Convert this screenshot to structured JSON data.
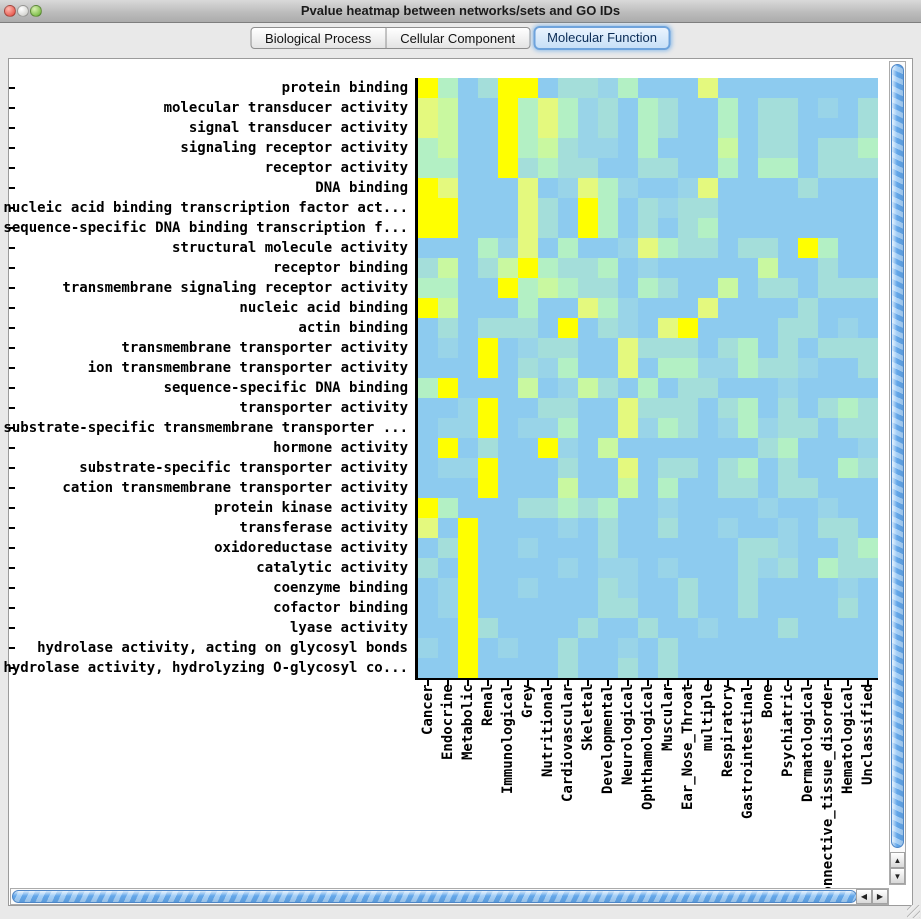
{
  "window": {
    "title": "Pvalue heatmap between networks/sets and GO IDs"
  },
  "tabs": [
    {
      "label": "Biological Process",
      "selected": false
    },
    {
      "label": "Cellular Component",
      "selected": false
    },
    {
      "label": "Molecular Function",
      "selected": true
    }
  ],
  "scrollbars": {
    "v": {
      "up_arrow": "▲",
      "down_arrow": "▼"
    },
    "h": {
      "left_arrow": "◀",
      "right_arrow": "▶"
    }
  },
  "chart_data": {
    "type": "heatmap",
    "columns": [
      "Cancer",
      "Endocrine",
      "Metabolic",
      "Renal",
      "Immunological",
      "Grey",
      "Nutritional",
      "Cardiovascular",
      "Skeletal",
      "Developmental",
      "Neurological",
      "Ophthamological",
      "Muscular",
      "Ear_Nose_Throat",
      "multiple",
      "Respiratory",
      "Gastrointestinal",
      "Bone",
      "Psychiatric",
      "Dermatological",
      "Connective_tissue_disorder",
      "Hematological",
      "Unclassified"
    ],
    "rows": [
      "protein binding",
      "molecular transducer activity",
      "signal transducer activity",
      "signaling receptor activity",
      "receptor activity",
      "DNA binding",
      "nucleic acid binding transcription factor act...",
      "sequence-specific DNA binding transcription f...",
      "structural molecule activity",
      "receptor binding",
      "transmembrane signaling receptor activity",
      "nucleic acid binding",
      "actin binding",
      "transmembrane transporter activity",
      "ion transmembrane transporter activity",
      "sequence-specific DNA binding",
      "transporter activity",
      "substrate-specific transmembrane transporter ...",
      "hormone activity",
      "substrate-specific transporter activity",
      "cation transmembrane transporter activity",
      "protein kinase activity",
      "transferase activity",
      "oxidoreductase activity",
      "catalytic activity",
      "coenzyme binding",
      "cofactor binding",
      "lyase activity",
      "hydrolase activity, acting on glycosyl bonds",
      "hydrolase activity, hydrolyzing O-glycosyl co..."
    ],
    "palette": [
      "#8DCBEF",
      "#99D4E8",
      "#A4DEDA",
      "#B3F0C4",
      "#C9F8A0",
      "#E4F97E",
      "#FFFF00"
    ],
    "palette_scale": "0 = light blue (low) … 6 = bright yellow (high)",
    "values": [
      [
        6,
        3,
        0,
        2,
        6,
        6,
        0,
        2,
        2,
        1,
        3,
        0,
        0,
        0,
        5,
        0,
        0,
        0,
        0,
        0,
        0,
        0,
        0
      ],
      [
        5,
        4,
        0,
        0,
        6,
        3,
        5,
        3,
        1,
        2,
        0,
        3,
        2,
        0,
        0,
        3,
        0,
        2,
        2,
        0,
        1,
        0,
        2
      ],
      [
        5,
        4,
        0,
        0,
        6,
        3,
        5,
        3,
        1,
        2,
        0,
        3,
        2,
        0,
        0,
        3,
        0,
        2,
        2,
        0,
        0,
        0,
        2
      ],
      [
        3,
        4,
        0,
        0,
        6,
        3,
        4,
        2,
        1,
        1,
        0,
        3,
        0,
        0,
        0,
        4,
        0,
        2,
        2,
        0,
        2,
        2,
        3
      ],
      [
        3,
        3,
        0,
        0,
        6,
        2,
        3,
        2,
        2,
        0,
        0,
        2,
        2,
        0,
        0,
        3,
        0,
        3,
        3,
        0,
        2,
        2,
        2
      ],
      [
        6,
        5,
        0,
        0,
        0,
        5,
        0,
        1,
        5,
        3,
        1,
        0,
        0,
        1,
        5,
        0,
        0,
        0,
        0,
        2,
        0,
        0,
        0
      ],
      [
        6,
        6,
        0,
        0,
        0,
        5,
        2,
        0,
        6,
        3,
        0,
        2,
        1,
        2,
        2,
        0,
        0,
        0,
        0,
        0,
        0,
        0,
        0
      ],
      [
        6,
        6,
        0,
        0,
        0,
        5,
        2,
        0,
        6,
        3,
        0,
        2,
        0,
        2,
        3,
        0,
        0,
        0,
        0,
        0,
        0,
        0,
        0
      ],
      [
        0,
        0,
        0,
        3,
        1,
        5,
        0,
        3,
        0,
        0,
        1,
        5,
        3,
        2,
        2,
        0,
        2,
        2,
        0,
        6,
        3,
        0,
        0
      ],
      [
        2,
        4,
        0,
        2,
        4,
        6,
        3,
        2,
        2,
        3,
        0,
        1,
        0,
        0,
        0,
        0,
        0,
        4,
        0,
        0,
        2,
        0,
        0
      ],
      [
        3,
        3,
        0,
        0,
        6,
        3,
        4,
        3,
        2,
        2,
        0,
        3,
        2,
        0,
        0,
        4,
        0,
        2,
        2,
        0,
        2,
        2,
        2
      ],
      [
        6,
        4,
        0,
        0,
        0,
        3,
        0,
        0,
        5,
        3,
        1,
        0,
        0,
        0,
        5,
        0,
        0,
        0,
        0,
        2,
        0,
        0,
        0
      ],
      [
        0,
        2,
        0,
        2,
        2,
        2,
        0,
        6,
        0,
        2,
        1,
        0,
        5,
        6,
        0,
        0,
        0,
        0,
        2,
        2,
        0,
        1,
        0
      ],
      [
        0,
        1,
        0,
        6,
        0,
        1,
        2,
        2,
        0,
        0,
        5,
        2,
        2,
        2,
        0,
        2,
        3,
        0,
        2,
        0,
        2,
        2,
        2
      ],
      [
        0,
        0,
        0,
        6,
        0,
        2,
        1,
        3,
        0,
        0,
        5,
        0,
        3,
        3,
        1,
        1,
        3,
        2,
        2,
        1,
        0,
        0,
        2
      ],
      [
        3,
        6,
        0,
        0,
        0,
        4,
        0,
        1,
        4,
        2,
        0,
        3,
        0,
        2,
        2,
        0,
        0,
        0,
        1,
        0,
        0,
        0,
        0
      ],
      [
        0,
        0,
        1,
        6,
        0,
        0,
        2,
        2,
        0,
        0,
        5,
        2,
        2,
        2,
        0,
        2,
        3,
        0,
        2,
        0,
        2,
        3,
        2
      ],
      [
        0,
        1,
        1,
        6,
        0,
        1,
        1,
        3,
        0,
        0,
        5,
        1,
        3,
        2,
        0,
        1,
        3,
        1,
        2,
        2,
        0,
        2,
        2
      ],
      [
        0,
        6,
        0,
        2,
        0,
        0,
        6,
        1,
        0,
        4,
        0,
        0,
        0,
        0,
        0,
        0,
        0,
        2,
        3,
        0,
        0,
        0,
        1
      ],
      [
        0,
        1,
        1,
        6,
        0,
        0,
        0,
        2,
        0,
        0,
        5,
        0,
        2,
        2,
        0,
        2,
        3,
        0,
        2,
        0,
        0,
        3,
        2
      ],
      [
        0,
        0,
        0,
        6,
        0,
        0,
        0,
        4,
        0,
        0,
        4,
        0,
        3,
        0,
        0,
        2,
        2,
        0,
        2,
        2,
        0,
        0,
        0
      ],
      [
        6,
        3,
        0,
        0,
        0,
        2,
        2,
        3,
        2,
        3,
        0,
        0,
        1,
        0,
        0,
        0,
        0,
        1,
        0,
        0,
        1,
        0,
        0
      ],
      [
        5,
        0,
        6,
        0,
        0,
        0,
        0,
        1,
        0,
        2,
        0,
        0,
        2,
        0,
        0,
        1,
        0,
        0,
        1,
        0,
        2,
        2,
        0
      ],
      [
        0,
        2,
        6,
        0,
        0,
        1,
        0,
        0,
        0,
        2,
        0,
        0,
        0,
        0,
        0,
        0,
        2,
        2,
        1,
        0,
        0,
        2,
        3
      ],
      [
        2,
        0,
        6,
        0,
        0,
        0,
        0,
        1,
        0,
        1,
        1,
        0,
        1,
        0,
        0,
        0,
        2,
        1,
        2,
        0,
        3,
        2,
        2
      ],
      [
        0,
        1,
        6,
        0,
        0,
        1,
        0,
        0,
        0,
        2,
        1,
        0,
        0,
        2,
        0,
        0,
        2,
        0,
        0,
        0,
        0,
        1,
        0
      ],
      [
        0,
        1,
        6,
        0,
        0,
        0,
        0,
        0,
        0,
        2,
        2,
        0,
        0,
        2,
        0,
        0,
        2,
        0,
        0,
        0,
        0,
        2,
        0
      ],
      [
        0,
        0,
        6,
        2,
        0,
        0,
        0,
        0,
        2,
        0,
        0,
        2,
        0,
        0,
        1,
        0,
        0,
        0,
        2,
        0,
        0,
        0,
        0
      ],
      [
        1,
        0,
        6,
        0,
        1,
        0,
        0,
        2,
        0,
        0,
        1,
        0,
        2,
        0,
        0,
        0,
        0,
        0,
        0,
        0,
        0,
        0,
        0
      ],
      [
        0,
        0,
        6,
        0,
        0,
        0,
        0,
        2,
        0,
        0,
        2,
        0,
        2,
        0,
        0,
        0,
        0,
        0,
        0,
        0,
        0,
        0,
        0
      ]
    ]
  }
}
